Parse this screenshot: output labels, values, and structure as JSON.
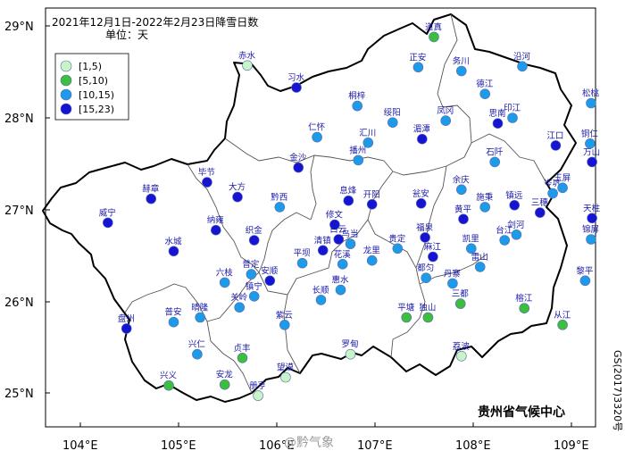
{
  "title_line1": "2021年12月1日-2022年2月23日降雪日数",
  "title_line2": "单位：天",
  "lat_labels": [
    "29°N",
    "28°N",
    "27°N",
    "26°N",
    "25°N"
  ],
  "lon_labels": [
    "104°E",
    "105°E",
    "106°E",
    "107°E",
    "108°E",
    "109°E"
  ],
  "legend": [
    {
      "label": "[1,5)",
      "color": "#c8f5c8"
    },
    {
      "label": "[5,10)",
      "color": "#3cbf3c"
    },
    {
      "label": "[10,15)",
      "color": "#1e9be8"
    },
    {
      "label": "[15,23)",
      "color": "#1414d2"
    }
  ],
  "credit": "贵州省气候中心",
  "watermark": "@黔气象",
  "map_number": "GS(2017)3320号",
  "stations": [
    {
      "name": "道真",
      "lon": 107.6,
      "lat": 28.88,
      "cls": 1
    },
    {
      "name": "赤水",
      "lon": 105.7,
      "lat": 28.57,
      "cls": 0
    },
    {
      "name": "习水",
      "lon": 106.2,
      "lat": 28.33,
      "cls": 3
    },
    {
      "name": "正安",
      "lon": 107.44,
      "lat": 28.55,
      "cls": 2
    },
    {
      "name": "务川",
      "lon": 107.88,
      "lat": 28.51,
      "cls": 2
    },
    {
      "name": "沿河",
      "lon": 108.5,
      "lat": 28.56,
      "cls": 2
    },
    {
      "name": "德江",
      "lon": 108.12,
      "lat": 28.26,
      "cls": 2
    },
    {
      "name": "桐梓",
      "lon": 106.82,
      "lat": 28.13,
      "cls": 2
    },
    {
      "name": "绥阳",
      "lon": 107.18,
      "lat": 27.95,
      "cls": 2
    },
    {
      "name": "凤冈",
      "lon": 107.72,
      "lat": 27.97,
      "cls": 2
    },
    {
      "name": "印江",
      "lon": 108.4,
      "lat": 28.0,
      "cls": 2
    },
    {
      "name": "思南",
      "lon": 108.25,
      "lat": 27.94,
      "cls": 3
    },
    {
      "name": "松桃",
      "lon": 109.2,
      "lat": 28.16,
      "cls": 2
    },
    {
      "name": "仁怀",
      "lon": 106.41,
      "lat": 27.79,
      "cls": 2
    },
    {
      "name": "汇川",
      "lon": 106.93,
      "lat": 27.73,
      "cls": 2
    },
    {
      "name": "湄潭",
      "lon": 107.48,
      "lat": 27.77,
      "cls": 3
    },
    {
      "name": "石阡",
      "lon": 108.22,
      "lat": 27.52,
      "cls": 2
    },
    {
      "name": "江口",
      "lon": 108.84,
      "lat": 27.7,
      "cls": 3
    },
    {
      "name": "铜仁",
      "lon": 109.19,
      "lat": 27.72,
      "cls": 2
    },
    {
      "name": "万山",
      "lon": 109.21,
      "lat": 27.52,
      "cls": 3
    },
    {
      "name": "金沙",
      "lon": 106.22,
      "lat": 27.46,
      "cls": 3
    },
    {
      "name": "播州",
      "lon": 106.83,
      "lat": 27.54,
      "cls": 2
    },
    {
      "name": "毕节",
      "lon": 105.29,
      "lat": 27.3,
      "cls": 3
    },
    {
      "name": "大方",
      "lon": 105.6,
      "lat": 27.14,
      "cls": 3
    },
    {
      "name": "黔西",
      "lon": 106.03,
      "lat": 27.03,
      "cls": 2
    },
    {
      "name": "赫章",
      "lon": 104.72,
      "lat": 27.12,
      "cls": 3
    },
    {
      "name": "息烽",
      "lon": 106.73,
      "lat": 27.1,
      "cls": 3
    },
    {
      "name": "开阳",
      "lon": 106.97,
      "lat": 27.06,
      "cls": 3
    },
    {
      "name": "余庆",
      "lon": 107.88,
      "lat": 27.22,
      "cls": 2
    },
    {
      "name": "瓮安",
      "lon": 107.47,
      "lat": 27.07,
      "cls": 3
    },
    {
      "name": "施秉",
      "lon": 108.12,
      "lat": 27.03,
      "cls": 2
    },
    {
      "name": "镇远",
      "lon": 108.42,
      "lat": 27.05,
      "cls": 3
    },
    {
      "name": "三穗",
      "lon": 108.68,
      "lat": 26.97,
      "cls": 3
    },
    {
      "name": "岑巩",
      "lon": 108.81,
      "lat": 27.18,
      "cls": 2
    },
    {
      "name": "玉屏",
      "lon": 108.91,
      "lat": 27.24,
      "cls": 2
    },
    {
      "name": "天柱",
      "lon": 109.21,
      "lat": 26.91,
      "cls": 3
    },
    {
      "name": "黄平",
      "lon": 107.9,
      "lat": 26.9,
      "cls": 3
    },
    {
      "name": "修文",
      "lon": 106.59,
      "lat": 26.84,
      "cls": 3
    },
    {
      "name": "纳雍",
      "lon": 105.38,
      "lat": 26.78,
      "cls": 3
    },
    {
      "name": "织金",
      "lon": 105.77,
      "lat": 26.67,
      "cls": 3
    },
    {
      "name": "威宁",
      "lon": 104.28,
      "lat": 26.86,
      "cls": 3
    },
    {
      "name": "福泉",
      "lon": 107.51,
      "lat": 26.7,
      "cls": 3
    },
    {
      "name": "清镇",
      "lon": 106.47,
      "lat": 26.56,
      "cls": 3
    },
    {
      "name": "乌当",
      "lon": 106.75,
      "lat": 26.63,
      "cls": 2
    },
    {
      "name": "白云",
      "lon": 106.63,
      "lat": 26.68,
      "cls": 3
    },
    {
      "name": "凯里",
      "lon": 107.98,
      "lat": 26.58,
      "cls": 2
    },
    {
      "name": "台江",
      "lon": 108.32,
      "lat": 26.67,
      "cls": 2
    },
    {
      "name": "剑河",
      "lon": 108.44,
      "lat": 26.73,
      "cls": 2
    },
    {
      "name": "锦屏",
      "lon": 109.2,
      "lat": 26.68,
      "cls": 2
    },
    {
      "name": "水城",
      "lon": 104.95,
      "lat": 26.55,
      "cls": 3
    },
    {
      "name": "平坝",
      "lon": 106.26,
      "lat": 26.42,
      "cls": 2
    },
    {
      "name": "花溪",
      "lon": 106.67,
      "lat": 26.41,
      "cls": 2
    },
    {
      "name": "龙里",
      "lon": 106.97,
      "lat": 26.45,
      "cls": 2
    },
    {
      "name": "贵定",
      "lon": 107.23,
      "lat": 26.58,
      "cls": 2
    },
    {
      "name": "麻江",
      "lon": 107.59,
      "lat": 26.49,
      "cls": 3
    },
    {
      "name": "雷山",
      "lon": 108.07,
      "lat": 26.38,
      "cls": 2
    },
    {
      "name": "都匀",
      "lon": 107.52,
      "lat": 26.26,
      "cls": 2
    },
    {
      "name": "六枝",
      "lon": 105.47,
      "lat": 26.21,
      "cls": 2
    },
    {
      "name": "普定",
      "lon": 105.74,
      "lat": 26.3,
      "cls": 2
    },
    {
      "name": "安顺",
      "lon": 105.93,
      "lat": 26.23,
      "cls": 3
    },
    {
      "name": "镇宁",
      "lon": 105.77,
      "lat": 26.06,
      "cls": 2
    },
    {
      "name": "长顺",
      "lon": 106.45,
      "lat": 26.02,
      "cls": 2
    },
    {
      "name": "惠水",
      "lon": 106.65,
      "lat": 26.13,
      "cls": 2
    },
    {
      "name": "丹寨",
      "lon": 107.79,
      "lat": 26.2,
      "cls": 2
    },
    {
      "name": "三都",
      "lon": 107.87,
      "lat": 25.98,
      "cls": 1
    },
    {
      "name": "黎平",
      "lon": 109.14,
      "lat": 26.23,
      "cls": 2
    },
    {
      "name": "关岭",
      "lon": 105.62,
      "lat": 25.94,
      "cls": 2
    },
    {
      "name": "紫云",
      "lon": 106.08,
      "lat": 25.75,
      "cls": 2
    },
    {
      "name": "平塘",
      "lon": 107.32,
      "lat": 25.83,
      "cls": 1
    },
    {
      "name": "独山",
      "lon": 107.54,
      "lat": 25.83,
      "cls": 1
    },
    {
      "name": "榕江",
      "lon": 108.52,
      "lat": 25.93,
      "cls": 1
    },
    {
      "name": "从江",
      "lon": 108.91,
      "lat": 25.75,
      "cls": 1
    },
    {
      "name": "盘州",
      "lon": 104.47,
      "lat": 25.71,
      "cls": 3
    },
    {
      "name": "普安",
      "lon": 104.95,
      "lat": 25.78,
      "cls": 2
    },
    {
      "name": "晴隆",
      "lon": 105.22,
      "lat": 25.83,
      "cls": 2
    },
    {
      "name": "兴仁",
      "lon": 105.19,
      "lat": 25.43,
      "cls": 2
    },
    {
      "name": "贞丰",
      "lon": 105.65,
      "lat": 25.39,
      "cls": 1
    },
    {
      "name": "罗甸",
      "lon": 106.75,
      "lat": 25.43,
      "cls": 0
    },
    {
      "name": "荔波",
      "lon": 107.88,
      "lat": 25.41,
      "cls": 0
    },
    {
      "name": "望谟",
      "lon": 106.09,
      "lat": 25.18,
      "cls": 0
    },
    {
      "name": "安龙",
      "lon": 105.47,
      "lat": 25.1,
      "cls": 1
    },
    {
      "name": "兴义",
      "lon": 104.9,
      "lat": 25.09,
      "cls": 1
    },
    {
      "name": "册亨",
      "lon": 105.81,
      "lat": 24.98,
      "cls": 0
    }
  ]
}
